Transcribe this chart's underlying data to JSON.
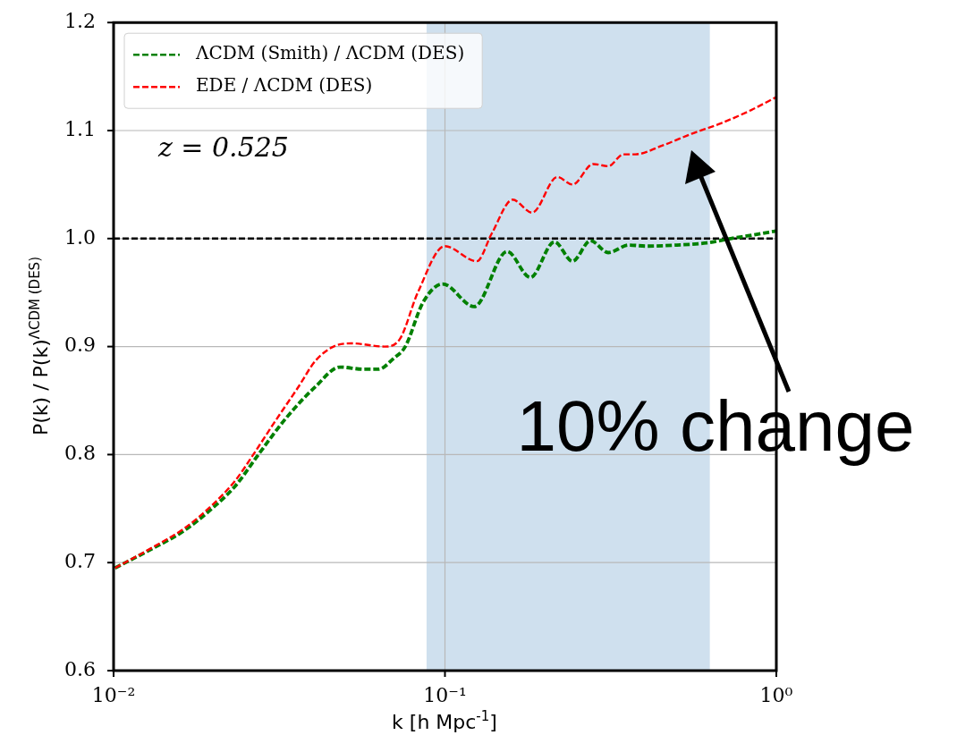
{
  "chart_data": {
    "type": "line",
    "xlabel": "k  [h Mpc$^{-1}$]",
    "ylabel": "P(k) / P(k)$^{ΛCDM (DES)}$",
    "log": "x",
    "grid": true,
    "legend": "top left",
    "marker": "none",
    "xlim": [
      0.01,
      1
    ],
    "xticks": [
      {
        "value": 0.01,
        "label": "10⁻²"
      },
      {
        "value": 0.1,
        "label": "10⁻¹"
      },
      {
        "value": 1,
        "label": "10⁰"
      }
    ],
    "ylim": [
      0.6,
      1.2
    ],
    "yticks": [
      {
        "value": 0.6,
        "label": "0.6"
      },
      {
        "value": 0.7,
        "label": "0.7"
      },
      {
        "value": 0.8,
        "label": "0.8"
      },
      {
        "value": 0.9,
        "label": "0.9"
      },
      {
        "value": 1.0,
        "label": "1.0"
      },
      {
        "value": 1.1,
        "label": "1.1"
      },
      {
        "value": 1.2,
        "label": "1.2"
      }
    ],
    "series": [
      {
        "name": "ΛCDM (Smith) / ΛCDM (DES)",
        "color": "#008000",
        "line_style": "dashed",
        "x": [
          0.0101,
          0.0131,
          0.0164,
          0.0198,
          0.0233,
          0.0275,
          0.0332,
          0.0407,
          0.0482,
          0.057,
          0.063,
          0.07,
          0.0759,
          0.0859,
          0.0984,
          0.1225,
          0.154,
          0.181,
          0.214,
          0.2426,
          0.275,
          0.311,
          0.359,
          0.406,
          0.501,
          0.616,
          0.728,
          0.84,
          1.0
        ],
        "values": [
          0.695,
          0.713,
          0.73,
          0.75,
          0.771,
          0.801,
          0.834,
          0.863,
          0.881,
          0.879,
          0.879,
          0.889,
          0.9,
          0.941,
          0.958,
          0.937,
          0.988,
          0.964,
          0.997,
          0.979,
          0.998,
          0.987,
          0.994,
          0.993,
          0.994,
          0.996,
          1.0,
          1.003,
          1.007
        ]
      },
      {
        "name": "EDE / ΛCDM (DES)",
        "color": "#ff0000",
        "line_style": "dashed",
        "x": [
          0.0101,
          0.0131,
          0.0164,
          0.0198,
          0.0233,
          0.0264,
          0.0306,
          0.036,
          0.0407,
          0.0461,
          0.0522,
          0.0657,
          0.0731,
          0.0828,
          0.0998,
          0.1247,
          0.1386,
          0.16,
          0.1833,
          0.2182,
          0.2426,
          0.28,
          0.311,
          0.3455,
          0.375,
          0.452,
          0.555,
          0.684,
          0.84,
          1.0
        ],
        "values": [
          0.695,
          0.714,
          0.732,
          0.753,
          0.776,
          0.8,
          0.83,
          0.862,
          0.887,
          0.9,
          0.903,
          0.9,
          0.907,
          0.95,
          0.993,
          0.979,
          1.005,
          1.036,
          1.024,
          1.057,
          1.05,
          1.069,
          1.067,
          1.078,
          1.078,
          1.086,
          1.097,
          1.107,
          1.119,
          1.131
        ]
      }
    ],
    "ref_lines": [
      {
        "axis": "y",
        "value": 1.0,
        "color": "#000000",
        "line_style": "dashed"
      }
    ],
    "bands": [
      {
        "axis": "x",
        "from": 0.088,
        "to": 0.63,
        "color": "#cfe0ee"
      }
    ],
    "annotations": [
      "z = 0.525",
      "10% change"
    ]
  }
}
